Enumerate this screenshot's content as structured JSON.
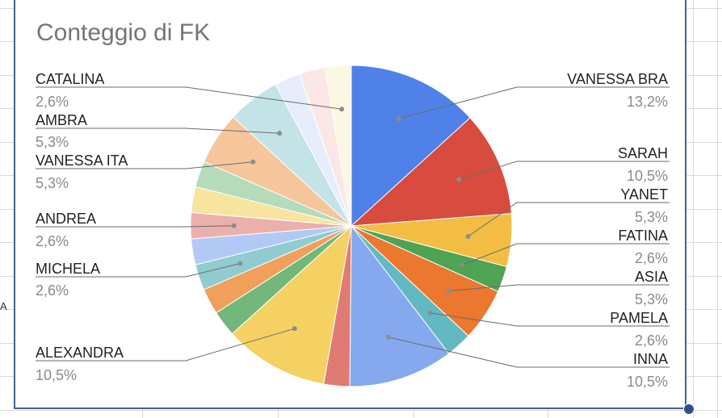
{
  "chart_data": {
    "type": "pie",
    "title": "Conteggio di FK",
    "slices": [
      {
        "label": "VANESSA BRA",
        "percent_label": "13,2%",
        "value": 13.2,
        "color": "#4f81e8"
      },
      {
        "label": "SARAH",
        "percent_label": "10,5%",
        "value": 10.5,
        "color": "#d74c3f"
      },
      {
        "label": "YANET",
        "percent_label": "5,3%",
        "value": 5.3,
        "color": "#f2bd42"
      },
      {
        "label": "FATINA",
        "percent_label": "2,6%",
        "value": 2.6,
        "color": "#4ea354"
      },
      {
        "label": "ASIA",
        "percent_label": "5,3%",
        "value": 5.3,
        "color": "#ec772f"
      },
      {
        "label": "PAMELA",
        "percent_label": "2,6%",
        "value": 2.6,
        "color": "#63b9c2"
      },
      {
        "label": "INNA",
        "percent_label": "10,5%",
        "value": 10.5,
        "color": "#86a8ef"
      },
      {
        "label": "",
        "percent_label": "",
        "value": 2.6,
        "color": "#e07b73"
      },
      {
        "label": "ALEXANDRA",
        "percent_label": "10,5%",
        "value": 10.5,
        "color": "#f5d062"
      },
      {
        "label": "",
        "percent_label": "",
        "value": 2.6,
        "color": "#71b87a"
      },
      {
        "label": "",
        "percent_label": "",
        "value": 2.6,
        "color": "#f0a05b"
      },
      {
        "label": "MICHELA",
        "percent_label": "2,6%",
        "value": 2.6,
        "color": "#90cbd1"
      },
      {
        "label": "",
        "percent_label": "",
        "value": 2.6,
        "color": "#b3c9f5"
      },
      {
        "label": "ANDREA",
        "percent_label": "2,6%",
        "value": 2.6,
        "color": "#ebb0ab"
      },
      {
        "label": "",
        "percent_label": "",
        "value": 2.6,
        "color": "#f7e49f"
      },
      {
        "label": "",
        "percent_label": "",
        "value": 2.6,
        "color": "#b5dbba"
      },
      {
        "label": "VANESSA ITA",
        "percent_label": "5,3%",
        "value": 5.3,
        "color": "#f5c59b"
      },
      {
        "label": "AMBRA",
        "percent_label": "5,3%",
        "value": 5.3,
        "color": "#c3e3e6"
      },
      {
        "label": "",
        "percent_label": "",
        "value": 2.6,
        "color": "#e7edfc"
      },
      {
        "label": "",
        "percent_label": "",
        "value": 2.6,
        "color": "#fbe8e6"
      },
      {
        "label": "CATALINA",
        "percent_label": "2,6%",
        "value": 2.6,
        "color": "#fdf6e3"
      }
    ]
  },
  "ui": {
    "edge_mark": "A"
  }
}
